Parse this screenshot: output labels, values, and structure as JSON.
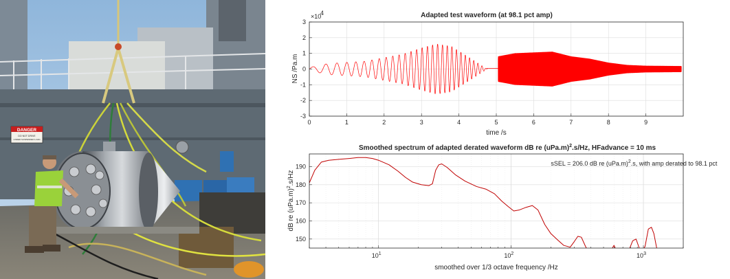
{
  "photo": {
    "sign_text": "DANGER",
    "sign_sub": "DO NOT DRIVE",
    "sign_sub2": "UNDER SUSPENDED LOAD"
  },
  "chart_data": [
    {
      "type": "line",
      "title": "Adapted test waveform (at 98.1 pct amp)",
      "xlabel": "time /s",
      "ylabel": "NS /Pa.m",
      "exponent_label": "×10",
      "exponent_power": "4",
      "xlim": [
        0,
        10
      ],
      "ylim": [
        -3,
        3
      ],
      "y_scale": 10000,
      "xticks": [
        "0",
        "1",
        "2",
        "3",
        "4",
        "5",
        "6",
        "7",
        "8",
        "9"
      ],
      "yticks": [
        "3",
        "2",
        "1",
        "0",
        "-1",
        "-2",
        "-3"
      ],
      "grid": true,
      "color": "#ff0000",
      "segments": [
        {
          "name": "swept sine",
          "t_start": 0.0,
          "t_end": 4.75,
          "f_start": 2.5,
          "f_end": 9.5,
          "envelope": [
            [
              0,
              0.1
            ],
            [
              0.5,
              0.35
            ],
            [
              1.5,
              0.5
            ],
            [
              2.5,
              0.95
            ],
            [
              3.0,
              1.35
            ],
            [
              3.4,
              1.6
            ],
            [
              3.8,
              1.45
            ],
            [
              4.3,
              0.7
            ],
            [
              4.75,
              0.0
            ]
          ]
        },
        {
          "name": "gap",
          "t_start": 4.75,
          "t_end": 5.05,
          "level": 0.05
        },
        {
          "name": "high-frequency burst",
          "t_start": 5.05,
          "t_end": 9.95,
          "envelope": [
            [
              5.05,
              0.8
            ],
            [
              5.5,
              1.0
            ],
            [
              6.0,
              1.05
            ],
            [
              6.5,
              1.1
            ],
            [
              7.0,
              0.8
            ],
            [
              7.5,
              0.65
            ],
            [
              8.0,
              0.4
            ],
            [
              8.5,
              0.25
            ],
            [
              9.0,
              0.2
            ],
            [
              9.95,
              0.18
            ]
          ]
        }
      ]
    },
    {
      "type": "line",
      "title": "Smoothed spectrum of adapted derated waveform dB re (uPa.m)",
      "title_sup": "2",
      "title_tail": ".s/Hz, HFadvance = 10 ms",
      "xlabel": "smoothed over 1/3 octave frequency /Hz",
      "ylabel": "dB re (uPa.m)",
      "ylabel_sup": "2",
      "ylabel_tail": ".s/Hz",
      "x_scale": "log",
      "xlim": [
        3,
        2000
      ],
      "ylim": [
        145,
        197
      ],
      "xticks": [
        {
          "value": 10,
          "base": "10",
          "power": "1"
        },
        {
          "value": 100,
          "base": "10",
          "power": "2"
        },
        {
          "value": 1000,
          "base": "10",
          "power": "3"
        }
      ],
      "yticks": [
        "190",
        "180",
        "170",
        "160",
        "150"
      ],
      "annotation": {
        "text1": "sSEL = 206.0 dB re (uPa.m)",
        "sup": "2",
        "text2": ".s, with amp derated to 98.1 pct",
        "x": 200,
        "y": 190.5
      },
      "grid": true,
      "color": "#c00000",
      "points": [
        [
          3,
          181
        ],
        [
          3.3,
          188
        ],
        [
          3.7,
          192.5
        ],
        [
          4.2,
          193.5
        ],
        [
          5,
          194
        ],
        [
          6,
          194.5
        ],
        [
          7,
          195
        ],
        [
          8,
          195
        ],
        [
          9,
          194.5
        ],
        [
          10,
          193.5
        ],
        [
          12,
          191
        ],
        [
          14,
          187.5
        ],
        [
          16,
          184
        ],
        [
          18,
          181.5
        ],
        [
          21,
          180
        ],
        [
          24,
          179.5
        ],
        [
          25.5,
          180.5
        ],
        [
          27,
          188
        ],
        [
          28.5,
          191
        ],
        [
          30,
          191.5
        ],
        [
          33,
          189.5
        ],
        [
          38,
          185.5
        ],
        [
          45,
          182
        ],
        [
          55,
          179
        ],
        [
          65,
          177.5
        ],
        [
          75,
          175
        ],
        [
          85,
          171
        ],
        [
          95,
          168
        ],
        [
          105,
          165.5
        ],
        [
          115,
          166
        ],
        [
          130,
          167.5
        ],
        [
          145,
          168.5
        ],
        [
          160,
          166
        ],
        [
          180,
          158
        ],
        [
          200,
          153
        ],
        [
          225,
          149.5
        ],
        [
          250,
          146.5
        ],
        [
          280,
          145.5
        ],
        [
          300,
          148.5
        ],
        [
          320,
          151.5
        ],
        [
          340,
          151
        ],
        [
          365,
          146
        ],
        [
          390,
          142
        ],
        [
          560,
          143
        ],
        [
          600,
          146.5
        ],
        [
          640,
          142
        ],
        [
          760,
          142
        ],
        [
          830,
          149
        ],
        [
          880,
          150
        ],
        [
          920,
          146
        ],
        [
          960,
          142
        ],
        [
          1030,
          146
        ],
        [
          1090,
          155.5
        ],
        [
          1150,
          156.5
        ],
        [
          1200,
          153
        ],
        [
          1260,
          145
        ],
        [
          1300,
          140
        ]
      ]
    }
  ]
}
